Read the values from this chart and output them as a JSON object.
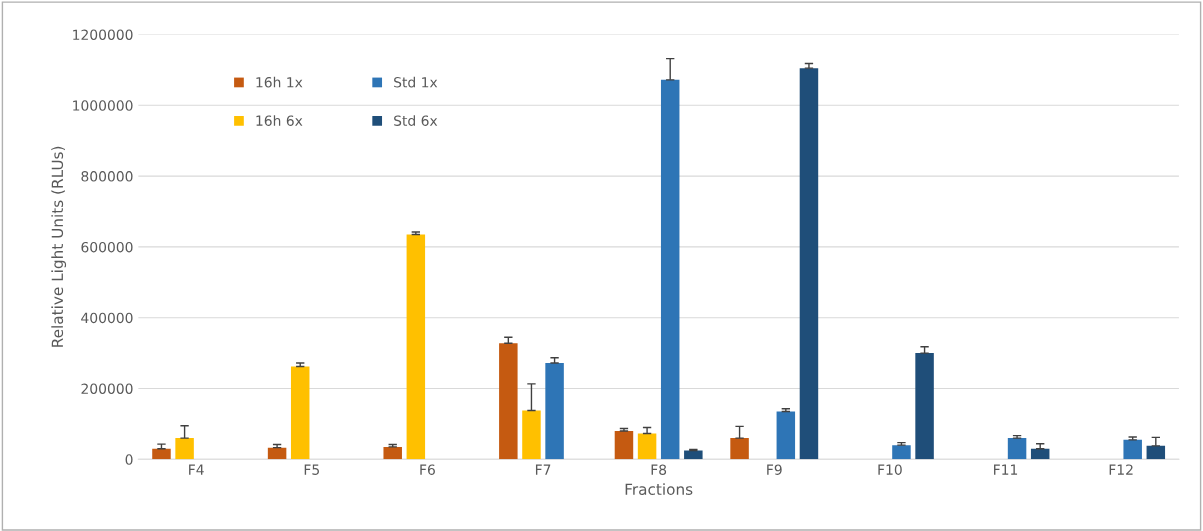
{
  "chart_data": {
    "type": "bar",
    "xlabel": "Fractions",
    "ylabel": "Relative Light Units (RLUs)",
    "categories": [
      "F4",
      "F5",
      "F6",
      "F7",
      "F8",
      "F9",
      "F10",
      "F11",
      "F12"
    ],
    "series": [
      {
        "name": "16h 1x",
        "color": "#c55a11",
        "values": [
          30000,
          33000,
          35000,
          328000,
          80000,
          60000,
          null,
          null,
          null
        ],
        "errors": [
          [
            30000,
            43000
          ],
          [
            33000,
            42000
          ],
          [
            35000,
            42000
          ],
          [
            328000,
            345000
          ],
          [
            80000,
            87000
          ],
          [
            60000,
            93000
          ],
          null,
          null,
          null
        ]
      },
      {
        "name": "16h 6x",
        "color": "#ffc000",
        "values": [
          60000,
          262000,
          635000,
          138000,
          73000,
          null,
          null,
          null,
          null
        ],
        "errors": [
          [
            60000,
            95000
          ],
          [
            262000,
            272000
          ],
          [
            635000,
            642000
          ],
          [
            138000,
            213000
          ],
          [
            73000,
            90000
          ],
          null,
          null,
          null,
          null
        ]
      },
      {
        "name": "Std 1x",
        "color": "#2e75b6",
        "values": [
          null,
          null,
          null,
          272000,
          1072000,
          135000,
          40000,
          60000,
          55000
        ],
        "errors": [
          null,
          null,
          null,
          [
            272000,
            287000
          ],
          [
            1072000,
            1132000
          ],
          [
            135000,
            143000
          ],
          [
            40000,
            47000
          ],
          [
            60000,
            67000
          ],
          [
            55000,
            63000
          ]
        ]
      },
      {
        "name": "Std 6x",
        "color": "#1f4e79",
        "values": [
          null,
          null,
          null,
          null,
          25000,
          1105000,
          300000,
          30000,
          38000
        ],
        "errors": [
          null,
          null,
          null,
          null,
          [
            25000,
            28000
          ],
          [
            1105000,
            1118000
          ],
          [
            300000,
            318000
          ],
          [
            30000,
            44000
          ],
          [
            38000,
            62000
          ]
        ]
      }
    ],
    "ylim": [
      0,
      1200000
    ],
    "yticks": [
      0,
      200000,
      400000,
      600000,
      800000,
      1000000,
      1200000
    ],
    "grid": "y",
    "legend": "top left"
  }
}
